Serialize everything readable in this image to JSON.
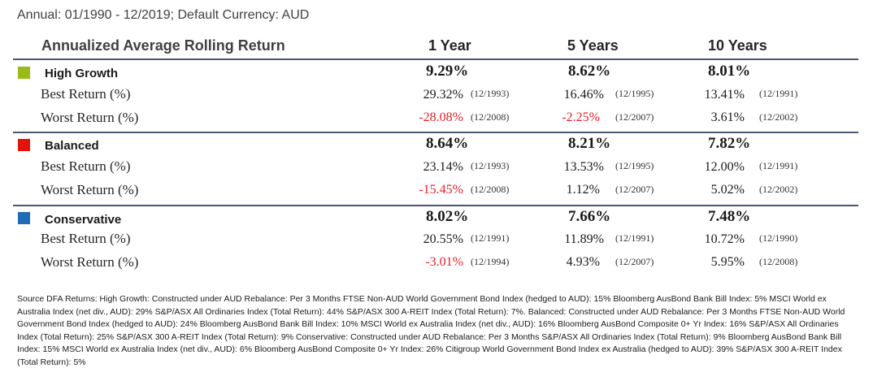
{
  "subtitle": "Annual: 01/1990 - 12/2019; Default Currency: AUD",
  "header": {
    "title": "Annualized Average Rolling Return",
    "columns": [
      "1 Year",
      "5 Years",
      "10 Years"
    ]
  },
  "row_labels": {
    "best": "Best Return (%)",
    "worst": "Worst Return (%)"
  },
  "colors": {
    "high_growth": "#9bbb1a",
    "balanced": "#e3120b",
    "conservative": "#1f6bb5",
    "negative": "#e8202a",
    "divider": "#4a5674"
  },
  "portfolios": [
    {
      "name": "High Growth",
      "averages": [
        "9.29%",
        "8.62%",
        "8.01%"
      ],
      "best": [
        {
          "value": "29.32%",
          "date": "(12/1993)"
        },
        {
          "value": "16.46%",
          "date": "(12/1995)"
        },
        {
          "value": "13.41%",
          "date": "(12/1991)"
        }
      ],
      "worst": [
        {
          "value": "-28.08%",
          "date": "(12/2008)"
        },
        {
          "value": "-2.25%",
          "date": "(12/2007)"
        },
        {
          "value": "3.61%",
          "date": "(12/2002)"
        }
      ]
    },
    {
      "name": "Balanced",
      "averages": [
        "8.64%",
        "8.21%",
        "7.82%"
      ],
      "best": [
        {
          "value": "23.14%",
          "date": "(12/1993)"
        },
        {
          "value": "13.53%",
          "date": "(12/1995)"
        },
        {
          "value": "12.00%",
          "date": "(12/1991)"
        }
      ],
      "worst": [
        {
          "value": "-15.45%",
          "date": "(12/2008)"
        },
        {
          "value": "1.12%",
          "date": "(12/2007)"
        },
        {
          "value": "5.02%",
          "date": "(12/2002)"
        }
      ]
    },
    {
      "name": "Conservative",
      "averages": [
        "8.02%",
        "7.66%",
        "7.48%"
      ],
      "best": [
        {
          "value": "20.55%",
          "date": "(12/1991)"
        },
        {
          "value": "11.89%",
          "date": "(12/1991)"
        },
        {
          "value": "10.72%",
          "date": "(12/1990)"
        }
      ],
      "worst": [
        {
          "value": "-3.01%",
          "date": "(12/1994)"
        },
        {
          "value": "4.93%",
          "date": "(12/2007)"
        },
        {
          "value": "5.95%",
          "date": "(12/2008)"
        }
      ]
    }
  ],
  "footnote": "Source DFA Returns: High Growth: Constructed under AUD Rebalance: Per 3 Months FTSE Non-AUD World Government Bond Index (hedged to AUD): 15% Bloomberg AusBond Bank Bill Index: 5% MSCI World ex Australia Index (net div., AUD): 29% S&P/ASX All Ordinaries Index (Total Return): 44% S&P/ASX 300 A-REIT Index (Total Return): 7%. Balanced: Constructed under AUD Rebalance: Per 3 Months FTSE Non-AUD World Government Bond  Index (hedged to AUD): 24% Bloomberg AusBond Bank Bill Index: 10% MSCI World ex Australia Index (net div., AUD): 16% Bloomberg AusBond Composite 0+ Yr Index: 16% S&P/ASX All Ordinaries Index (Total Return): 25% S&P/ASX 300 A-REIT Index (Total Return): 9% Conservative: Constructed under AUD Rebalance: Per 3 Months S&P/ASX All Ordinaries Index (Total Return): 9% Bloomberg AusBond Bank Bill Index: 15% MSCI World ex Australia Index (net div., AUD): 6% Bloomberg AusBond Composite 0+ Yr Index: 26% Citigroup World Government Bond Index ex Australia  (hedged to AUD): 39% S&P/ASX 300 A-REIT Index (Total Return): 5%"
}
